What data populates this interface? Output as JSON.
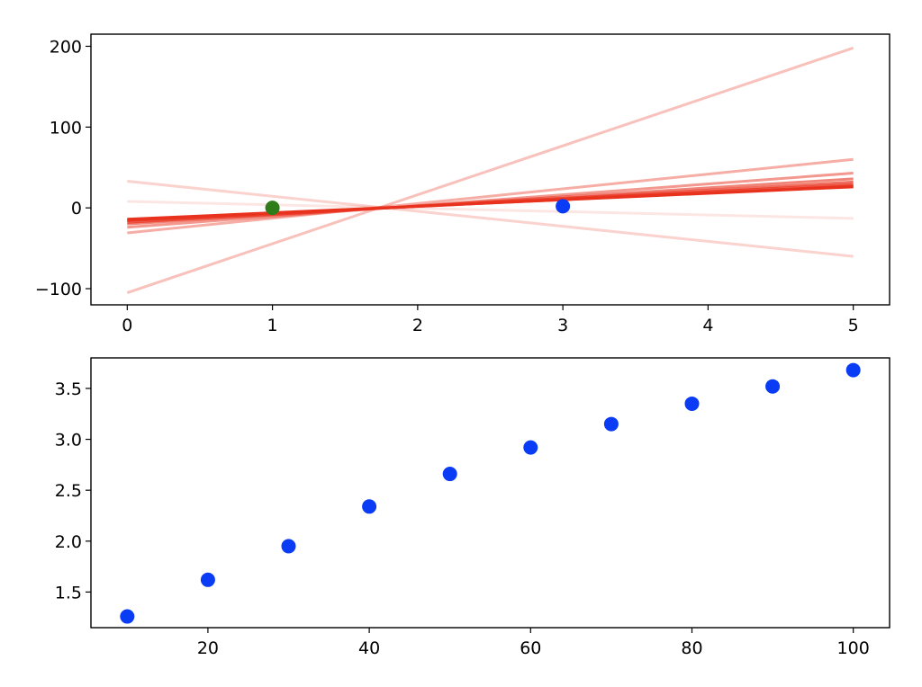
{
  "chart_data": [
    {
      "type": "line",
      "xlim": [
        -0.25,
        5.25
      ],
      "ylim": [
        -120,
        215
      ],
      "xticks": [
        0,
        1,
        2,
        3,
        4,
        5
      ],
      "xtick_labels": [
        "0",
        "1",
        "2",
        "3",
        "4",
        "5"
      ],
      "yticks": [
        -100,
        0,
        100,
        200
      ],
      "ytick_labels": [
        "−100",
        "0",
        "100",
        "200"
      ],
      "line_color": "#e8321e",
      "lines": [
        {
          "x": [
            0,
            5
          ],
          "y": [
            -105,
            198
          ],
          "opacity": 0.3
        },
        {
          "x": [
            0,
            5
          ],
          "y": [
            33,
            -60
          ],
          "opacity": 0.22
        },
        {
          "x": [
            0,
            5
          ],
          "y": [
            8,
            -13
          ],
          "opacity": 0.12
        },
        {
          "x": [
            0,
            5
          ],
          "y": [
            -31,
            60
          ],
          "opacity": 0.4
        },
        {
          "x": [
            0,
            5
          ],
          "y": [
            -24,
            43
          ],
          "opacity": 0.5
        },
        {
          "x": [
            0,
            5
          ],
          "y": [
            -20,
            36
          ],
          "opacity": 0.6
        },
        {
          "x": [
            0,
            5
          ],
          "y": [
            -18,
            32
          ],
          "opacity": 0.7
        },
        {
          "x": [
            0,
            5
          ],
          "y": [
            -16,
            29
          ],
          "opacity": 0.8
        },
        {
          "x": [
            0,
            5
          ],
          "y": [
            -15,
            27
          ],
          "opacity": 0.9
        },
        {
          "x": [
            0,
            5
          ],
          "y": [
            -14,
            26
          ],
          "opacity": 1.0
        }
      ],
      "points": [
        {
          "x": 1,
          "y": 0,
          "color": "#2e7d1a"
        },
        {
          "x": 3,
          "y": 2,
          "color": "#0a3cf5"
        }
      ]
    },
    {
      "type": "scatter",
      "xlim": [
        5.5,
        104.5
      ],
      "ylim": [
        1.15,
        3.8
      ],
      "xticks": [
        20,
        40,
        60,
        80,
        100
      ],
      "xtick_labels": [
        "20",
        "40",
        "60",
        "80",
        "100"
      ],
      "yticks": [
        1.5,
        2.0,
        2.5,
        3.0,
        3.5
      ],
      "ytick_labels": [
        "1.5",
        "2.0",
        "2.5",
        "3.0",
        "3.5"
      ],
      "point_color": "#0a3cf5",
      "x": [
        10,
        20,
        30,
        40,
        50,
        60,
        70,
        80,
        90,
        100
      ],
      "y": [
        1.26,
        1.62,
        1.95,
        2.34,
        2.66,
        2.92,
        3.15,
        3.35,
        3.52,
        3.68
      ]
    }
  ]
}
